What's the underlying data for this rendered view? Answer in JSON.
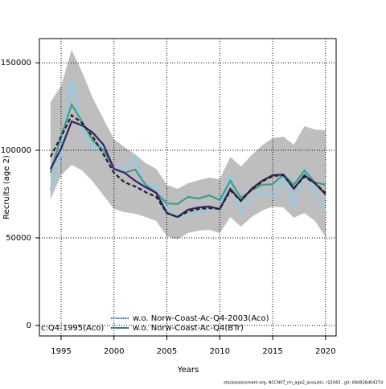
{
  "chart_data": {
    "type": "line",
    "xlabel": "Years",
    "ylabel": "Recruits (age 2)",
    "annotation": "c:Q4-1995(Aco)",
    "footer": "stockassessment.org, NCCN07_rm_age2_acoustic, r15043 , git: 69d926d0437d",
    "x": [
      1994,
      1995,
      1996,
      1997,
      1998,
      1999,
      2000,
      2001,
      2002,
      2003,
      2004,
      2005,
      2006,
      2007,
      2008,
      2009,
      2010,
      2011,
      2012,
      2013,
      2014,
      2015,
      2016,
      2017,
      2018,
      2019,
      2020
    ],
    "xlim": [
      1992.95,
      2021
    ],
    "xticks": [
      1995,
      2000,
      2005,
      2010,
      2015,
      2020
    ],
    "ylim": [
      -6000,
      163800
    ],
    "yticks": [
      0,
      50000,
      100000,
      150000
    ],
    "grid": true,
    "band": {
      "color": "#bebebe",
      "upper": [
        127500,
        136700,
        157300,
        144500,
        129800,
        117900,
        106400,
        101800,
        97700,
        92700,
        89400,
        80300,
        78000,
        81200,
        83000,
        84400,
        83500,
        96300,
        90800,
        97200,
        102800,
        106900,
        107800,
        103200,
        113800,
        111900,
        111500
      ],
      "lower": [
        72000,
        85800,
        91700,
        88500,
        82100,
        74300,
        66500,
        64700,
        63800,
        61900,
        59600,
        50900,
        49100,
        52800,
        54100,
        54600,
        52800,
        61900,
        56400,
        61900,
        65600,
        67900,
        67400,
        61500,
        64200,
        59600,
        50500
      ]
    },
    "series": [
      {
        "color": "#87ceeb",
        "dash": "solid",
        "name": "w.o. Norw-Coast-Ac-Q4-2003(Aco)",
        "values": [
          77100,
          98600,
          139900,
          112400,
          100900,
          103200,
          89400,
          89400,
          96300,
          78000,
          80300,
          66500,
          61900,
          64200,
          64700,
          66500,
          66500,
          85800,
          64200,
          73400,
          76600,
          73400,
          84900,
          68800,
          87200,
          76600,
          65600
        ]
      },
      {
        "color": "#3a9e8c",
        "dash": "solid",
        "name": "w.o. Norw-Coast-Ac-Q4(BTr)",
        "values": [
          87200,
          107800,
          126100,
          116100,
          105500,
          100000,
          89400,
          87200,
          89000,
          80300,
          75700,
          69700,
          69300,
          73400,
          72500,
          74300,
          71600,
          82600,
          72900,
          77100,
          80300,
          80700,
          86200,
          80300,
          88500,
          81700,
          80300
        ]
      },
      {
        "color": "#3b1f6e",
        "dash": "solid",
        "values": [
          89400,
          100900,
          116500,
          114200,
          110100,
          103200,
          89400,
          87200,
          82600,
          78900,
          75700,
          64200,
          61900,
          66100,
          67400,
          67900,
          66500,
          78000,
          71100,
          78000,
          82600,
          85800,
          86200,
          78000,
          85800,
          81200,
          74800
        ]
      },
      {
        "color": "#222222",
        "dash": "dashed",
        "values": [
          96300,
          107800,
          120000,
          115600,
          107800,
          97700,
          87200,
          81700,
          79400,
          76100,
          73400,
          64200,
          61900,
          65100,
          66500,
          67000,
          66500,
          77100,
          71100,
          77500,
          82100,
          85300,
          85800,
          78400,
          84900,
          81200,
          75700
        ]
      }
    ]
  }
}
